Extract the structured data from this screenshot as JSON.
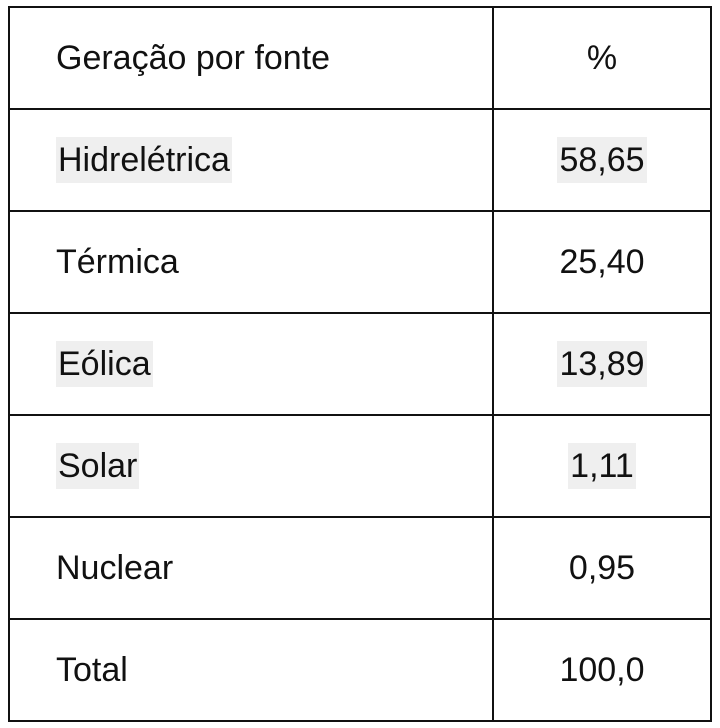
{
  "table": {
    "header": [
      "Geração por fonte",
      "%"
    ],
    "rows": [
      [
        "Hidrelétrica",
        "58,65"
      ],
      [
        "Térmica",
        "25,40"
      ],
      [
        "Eólica",
        "13,89"
      ],
      [
        "Solar",
        "1,11"
      ],
      [
        "Nuclear",
        "0,95"
      ],
      [
        "Total",
        "100,0"
      ]
    ]
  }
}
